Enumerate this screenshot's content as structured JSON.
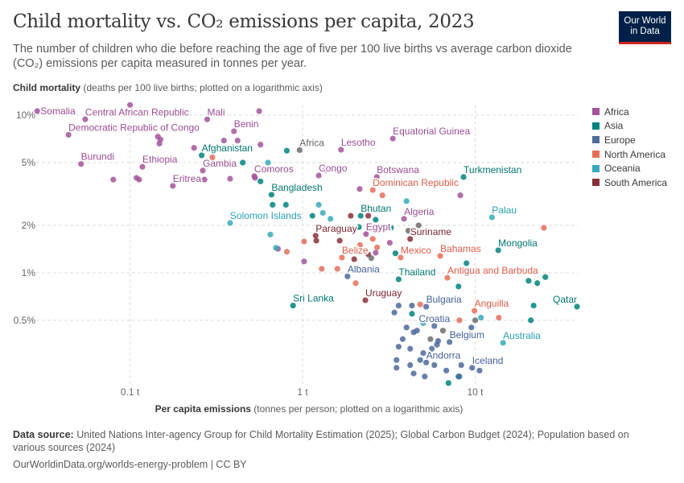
{
  "header": {
    "title": "Child mortality vs. CO₂ emissions per capita, 2023",
    "subtitle": "The number of children who die before reaching the age of five per 100 live births vs average carbon dioxide (CO₂) emissions per capita measured in tonnes per year.",
    "logo_line1": "Our World",
    "logo_line2": "in Data"
  },
  "footer": {
    "source_label": "Data source:",
    "source_text": " United Nations Inter-agency Group for Child Mortality Estimation (2025); Global Carbon Budget (2024); Population based on various sources (2024)",
    "url": "OurWorldinData.org/worlds-energy-problem | CC BY"
  },
  "colors": {
    "Africa": "#a2559c",
    "Asia": "#00847e",
    "Europe": "#4c6a9c",
    "North America": "#e56e5a",
    "Oceania": "#38aaba",
    "South America": "#883039",
    "aggregate": "#6d6d6d"
  },
  "label_colors": {
    "Africa": "#9a4c94",
    "Asia": "#00756f",
    "Europe": "#44609a",
    "North America": "#dc5c48",
    "Oceania": "#2a9fb0",
    "South America": "#7a2530",
    "aggregate": "#666666"
  },
  "chart_data": {
    "type": "scatter",
    "title": "Child mortality vs. CO₂ emissions per capita, 2023",
    "ylabel_bold": "Child mortality",
    "ylabel_rest": " (deaths per 100 live births; plotted on a logarithmic axis)",
    "xlabel_bold": "Per capita emissions",
    "xlabel_rest": " (tonnes per person; plotted on a logarithmic axis)",
    "xscale": "log",
    "yscale": "log",
    "xlim": [
      0.0286,
      39.3
    ],
    "ylim": [
      0.195,
      11.65
    ],
    "grid": true,
    "legend": "right",
    "xticks": [
      {
        "v": 0.1,
        "label": "0.1 t"
      },
      {
        "v": 1,
        "label": "1 t"
      },
      {
        "v": 10,
        "label": "10 t"
      }
    ],
    "yticks": [
      {
        "v": 0.5,
        "label": "0.5%"
      },
      {
        "v": 1,
        "label": "1%"
      },
      {
        "v": 2,
        "label": "2%"
      },
      {
        "v": 5,
        "label": "5%"
      },
      {
        "v": 10,
        "label": "10%"
      }
    ],
    "legend_entries": [
      "Africa",
      "Asia",
      "Europe",
      "North America",
      "Oceania",
      "South America"
    ],
    "points": [
      {
        "name": "Somalia",
        "region": "Africa",
        "x": 0.029,
        "y": 10.6
      },
      {
        "name": "Central African Republic",
        "region": "Africa",
        "x": 0.055,
        "y": 9.4
      },
      {
        "name": "Mali",
        "region": "Africa",
        "x": 0.28,
        "y": 9.4
      },
      {
        "name": "Democratic Republic of Congo",
        "region": "Africa",
        "x": 0.044,
        "y": 7.5
      },
      {
        "name": "Benin",
        "region": "Africa",
        "x": 0.4,
        "y": 7.9
      },
      {
        "name": "Burundi",
        "region": "Africa",
        "x": 0.052,
        "y": 4.9
      },
      {
        "name": "Ethiopia",
        "region": "Africa",
        "x": 0.118,
        "y": 4.7
      },
      {
        "name": "Eritrea",
        "region": "Africa",
        "x": 0.177,
        "y": 3.56
      },
      {
        "name": "Gambia",
        "region": "Africa",
        "x": 0.264,
        "y": 4.45
      },
      {
        "name": "Afghanistan",
        "region": "Asia",
        "x": 0.26,
        "y": 5.56
      },
      {
        "name": "Comoros",
        "region": "Africa",
        "x": 0.525,
        "y": 4.1
      },
      {
        "name": "Africa",
        "region": "aggregate",
        "x": 0.96,
        "y": 6.0
      },
      {
        "name": "Lesotho",
        "region": "Africa",
        "x": 1.67,
        "y": 6.03
      },
      {
        "name": "Equatorial Guinea",
        "region": "Africa",
        "x": 3.33,
        "y": 7.1
      },
      {
        "name": "Congo",
        "region": "Africa",
        "x": 1.24,
        "y": 4.14
      },
      {
        "name": "Botswana",
        "region": "Africa",
        "x": 2.69,
        "y": 4.05
      },
      {
        "name": "Turkmenistan",
        "region": "Asia",
        "x": 8.56,
        "y": 4.05
      },
      {
        "name": "Bangladesh",
        "region": "Asia",
        "x": 0.66,
        "y": 3.13
      },
      {
        "name": "Dominican Republic",
        "region": "North America",
        "x": 2.55,
        "y": 3.35
      },
      {
        "name": "Solomon Islands",
        "region": "Oceania",
        "x": 0.38,
        "y": 2.07
      },
      {
        "name": "Bhutan",
        "region": "Asia",
        "x": 2.17,
        "y": 2.3
      },
      {
        "name": "Algeria",
        "region": "Africa",
        "x": 3.87,
        "y": 2.2
      },
      {
        "name": "Palau",
        "region": "Oceania",
        "x": 12.5,
        "y": 2.25
      },
      {
        "name": "Paraguay",
        "region": "South America",
        "x": 1.19,
        "y": 1.72
      },
      {
        "name": "Egypt",
        "region": "Africa",
        "x": 2.33,
        "y": 1.76
      },
      {
        "name": "Suriname",
        "region": "South America",
        "x": 4.2,
        "y": 1.64
      },
      {
        "name": "Mongolia",
        "region": "Asia",
        "x": 13.6,
        "y": 1.39
      },
      {
        "name": "Belize",
        "region": "North America",
        "x": 1.69,
        "y": 1.25
      },
      {
        "name": "Mexico",
        "region": "North America",
        "x": 3.7,
        "y": 1.25
      },
      {
        "name": "Bahamas",
        "region": "North America",
        "x": 6.27,
        "y": 1.28
      },
      {
        "name": "Albania",
        "region": "Europe",
        "x": 1.82,
        "y": 0.95
      },
      {
        "name": "Thailand",
        "region": "Asia",
        "x": 3.6,
        "y": 0.91
      },
      {
        "name": "Antigua and Barbuda",
        "region": "North America",
        "x": 6.9,
        "y": 0.93
      },
      {
        "name": "Sri Lanka",
        "region": "Asia",
        "x": 0.88,
        "y": 0.62
      },
      {
        "name": "Uruguay",
        "region": "South America",
        "x": 2.31,
        "y": 0.67
      },
      {
        "name": "Bulgaria",
        "region": "Europe",
        "x": 5.2,
        "y": 0.61
      },
      {
        "name": "Anguilla",
        "region": "North America",
        "x": 9.9,
        "y": 0.575
      },
      {
        "name": "Qatar",
        "region": "Asia",
        "x": 38.9,
        "y": 0.61
      },
      {
        "name": "Croatia",
        "region": "Europe",
        "x": 5.8,
        "y": 0.46
      },
      {
        "name": "Belgium",
        "region": "Europe",
        "x": 7.1,
        "y": 0.364
      },
      {
        "name": "Australia",
        "region": "Oceania",
        "x": 14.5,
        "y": 0.36
      },
      {
        "name": "Andorra",
        "region": "Europe",
        "x": 5.2,
        "y": 0.27
      },
      {
        "name": "Iceland",
        "region": "Europe",
        "x": 9.6,
        "y": 0.25
      },
      {
        "region": "Africa",
        "x": 0.1,
        "y": 11.6
      },
      {
        "region": "Africa",
        "x": 0.56,
        "y": 10.6
      },
      {
        "region": "Africa",
        "x": 0.15,
        "y": 7.0
      },
      {
        "region": "Africa",
        "x": 0.145,
        "y": 7.3
      },
      {
        "region": "Africa",
        "x": 0.148,
        "y": 6.6
      },
      {
        "region": "Africa",
        "x": 0.235,
        "y": 6.2
      },
      {
        "region": "Africa",
        "x": 0.35,
        "y": 6.9
      },
      {
        "region": "Africa",
        "x": 0.42,
        "y": 6.9
      },
      {
        "region": "Africa",
        "x": 0.57,
        "y": 6.5
      },
      {
        "region": "Africa",
        "x": 0.08,
        "y": 3.9
      },
      {
        "region": "Africa",
        "x": 0.113,
        "y": 3.9
      },
      {
        "region": "Africa",
        "x": 0.109,
        "y": 4.0
      },
      {
        "region": "Africa",
        "x": 0.27,
        "y": 3.9
      },
      {
        "region": "Africa",
        "x": 0.38,
        "y": 3.95
      },
      {
        "region": "Africa",
        "x": 0.58,
        "y": 4.5
      },
      {
        "region": "Africa",
        "x": 0.53,
        "y": 4.0
      },
      {
        "region": "Africa",
        "x": 1.35,
        "y": 4.5
      },
      {
        "region": "Africa",
        "x": 2.14,
        "y": 3.4
      },
      {
        "region": "Africa",
        "x": 8.2,
        "y": 3.1
      },
      {
        "region": "Africa",
        "x": 3.2,
        "y": 1.55
      },
      {
        "region": "Africa",
        "x": 2.65,
        "y": 1.34
      },
      {
        "region": "Africa",
        "x": 2.0,
        "y": 1.36
      },
      {
        "region": "Africa",
        "x": 1.02,
        "y": 1.18
      },
      {
        "region": "Africa",
        "x": 0.72,
        "y": 1.42
      },
      {
        "region": "Asia",
        "x": 0.81,
        "y": 5.95
      },
      {
        "region": "Asia",
        "x": 0.45,
        "y": 5.0
      },
      {
        "region": "Asia",
        "x": 0.57,
        "y": 3.8
      },
      {
        "region": "Asia",
        "x": 0.67,
        "y": 2.7
      },
      {
        "region": "Asia",
        "x": 0.8,
        "y": 2.7
      },
      {
        "region": "Asia",
        "x": 1.14,
        "y": 2.3
      },
      {
        "region": "Asia",
        "x": 2.12,
        "y": 1.95
      },
      {
        "region": "Asia",
        "x": 2.65,
        "y": 2.17
      },
      {
        "region": "Asia",
        "x": 3.25,
        "y": 1.93
      },
      {
        "region": "Asia",
        "x": 3.45,
        "y": 1.33
      },
      {
        "region": "Asia",
        "x": 8.9,
        "y": 1.15
      },
      {
        "region": "Asia",
        "x": 8.0,
        "y": 0.82
      },
      {
        "region": "Asia",
        "x": 20.4,
        "y": 0.89
      },
      {
        "region": "Asia",
        "x": 22.9,
        "y": 0.86
      },
      {
        "region": "Asia",
        "x": 25.5,
        "y": 0.94
      },
      {
        "region": "Asia",
        "x": 21.8,
        "y": 0.62
      },
      {
        "region": "Asia",
        "x": 21.0,
        "y": 0.5
      },
      {
        "region": "Asia",
        "x": 4.3,
        "y": 0.55
      },
      {
        "region": "Asia",
        "x": 7.0,
        "y": 0.2
      },
      {
        "region": "Asia",
        "x": 8.0,
        "y": 0.22
      },
      {
        "region": "Europe",
        "x": 3.4,
        "y": 0.56
      },
      {
        "region": "Europe",
        "x": 3.6,
        "y": 0.62
      },
      {
        "region": "Europe",
        "x": 4.3,
        "y": 0.62
      },
      {
        "region": "Europe",
        "x": 4.0,
        "y": 0.45
      },
      {
        "region": "Europe",
        "x": 4.4,
        "y": 0.42
      },
      {
        "region": "Europe",
        "x": 4.6,
        "y": 0.43
      },
      {
        "region": "Europe",
        "x": 3.8,
        "y": 0.38
      },
      {
        "region": "Europe",
        "x": 3.6,
        "y": 0.34
      },
      {
        "region": "Europe",
        "x": 4.2,
        "y": 0.33
      },
      {
        "region": "Europe",
        "x": 5.0,
        "y": 0.31
      },
      {
        "region": "Europe",
        "x": 5.6,
        "y": 0.33
      },
      {
        "region": "Europe",
        "x": 6.1,
        "y": 0.37
      },
      {
        "region": "Europe",
        "x": 3.5,
        "y": 0.28
      },
      {
        "region": "Europe",
        "x": 3.5,
        "y": 0.25
      },
      {
        "region": "Europe",
        "x": 4.2,
        "y": 0.26
      },
      {
        "region": "Europe",
        "x": 4.8,
        "y": 0.28
      },
      {
        "region": "Europe",
        "x": 5.8,
        "y": 0.26
      },
      {
        "region": "Europe",
        "x": 6.8,
        "y": 0.24
      },
      {
        "region": "Europe",
        "x": 8.3,
        "y": 0.26
      },
      {
        "region": "Europe",
        "x": 10.6,
        "y": 0.24
      },
      {
        "region": "Europe",
        "x": 5.1,
        "y": 0.22
      },
      {
        "region": "Europe",
        "x": 4.4,
        "y": 0.23
      },
      {
        "region": "Europe",
        "x": 6.0,
        "y": 0.35
      },
      {
        "region": "Europe",
        "x": 9.5,
        "y": 0.45
      },
      {
        "region": "Europe",
        "x": 8.1,
        "y": 0.22
      },
      {
        "region": "North America",
        "x": 25.0,
        "y": 1.93
      },
      {
        "region": "North America",
        "x": 2.03,
        "y": 0.86
      },
      {
        "region": "North America",
        "x": 2.15,
        "y": 1.5
      },
      {
        "region": "North America",
        "x": 1.29,
        "y": 1.06
      },
      {
        "region": "North America",
        "x": 0.81,
        "y": 1.36
      },
      {
        "region": "North America",
        "x": 1.02,
        "y": 1.58
      },
      {
        "region": "North America",
        "x": 2.55,
        "y": 1.64
      },
      {
        "region": "North America",
        "x": 13.7,
        "y": 0.52
      },
      {
        "region": "North America",
        "x": 4.8,
        "y": 0.63
      },
      {
        "region": "North America",
        "x": 8.1,
        "y": 0.5
      },
      {
        "region": "North America",
        "x": 1.59,
        "y": 1.06
      },
      {
        "region": "North America",
        "x": 2.7,
        "y": 1.45
      },
      {
        "region": "North America",
        "x": 0.3,
        "y": 5.4
      },
      {
        "region": "North America",
        "x": 2.9,
        "y": 3.1
      },
      {
        "region": "Oceania",
        "x": 0.7,
        "y": 1.44
      },
      {
        "region": "Oceania",
        "x": 1.24,
        "y": 2.7
      },
      {
        "region": "Oceania",
        "x": 1.31,
        "y": 2.4
      },
      {
        "region": "Oceania",
        "x": 4.0,
        "y": 2.85
      },
      {
        "region": "Oceania",
        "x": 10.8,
        "y": 0.52
      },
      {
        "region": "Oceania",
        "x": 0.65,
        "y": 1.75
      },
      {
        "region": "Oceania",
        "x": 0.63,
        "y": 5.0
      },
      {
        "region": "Oceania",
        "x": 1.45,
        "y": 2.2
      },
      {
        "region": "Oceania",
        "x": 5.0,
        "y": 0.48
      },
      {
        "region": "South America",
        "x": 1.9,
        "y": 2.3
      },
      {
        "region": "South America",
        "x": 1.2,
        "y": 1.6
      },
      {
        "region": "South America",
        "x": 1.64,
        "y": 1.6
      },
      {
        "region": "South America",
        "x": 1.99,
        "y": 1.22
      },
      {
        "region": "South America",
        "x": 2.4,
        "y": 1.31
      },
      {
        "region": "South America",
        "x": 2.4,
        "y": 2.3
      },
      {
        "region": "aggregate",
        "x": 4.7,
        "y": 2.0
      },
      {
        "region": "aggregate",
        "x": 2.5,
        "y": 1.24
      },
      {
        "region": "aggregate",
        "x": 4.1,
        "y": 1.85
      },
      {
        "region": "aggregate",
        "x": 6.5,
        "y": 0.43
      },
      {
        "region": "aggregate",
        "x": 5.5,
        "y": 0.38
      },
      {
        "region": "aggregate",
        "x": 10.0,
        "y": 0.5
      }
    ]
  }
}
